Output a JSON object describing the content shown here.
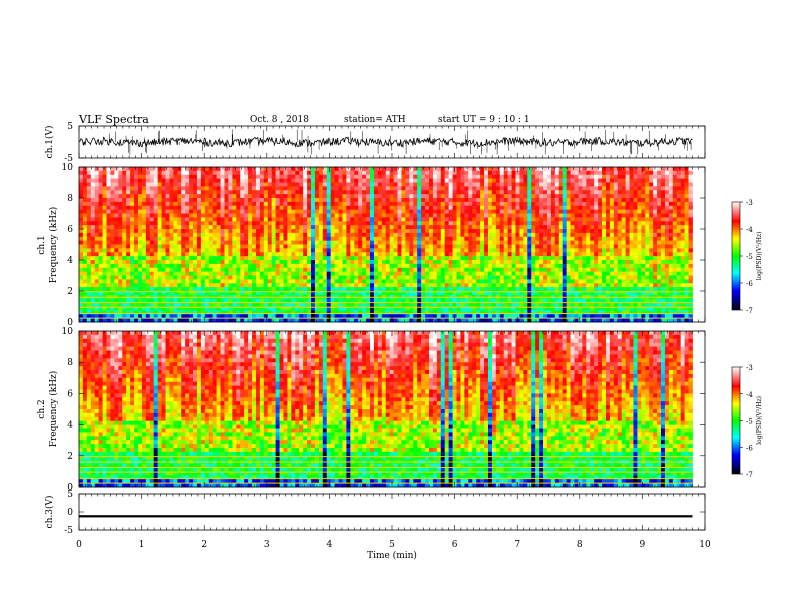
{
  "header": {
    "title": "VLF Spectra",
    "date": "Oct. 8 , 2018",
    "station": "station= ATH",
    "start_ut": "start UT = 9 : 10 : 1"
  },
  "chart_data": [
    {
      "type": "line",
      "panel": "ch1-waveform",
      "ylabel": "ch.1(V)",
      "yticks": [
        -5,
        5
      ],
      "ylim": [
        -5,
        5
      ],
      "xlim": [
        0,
        10
      ],
      "series": [
        {
          "values_note": "",
          "mean": 0.0,
          "envelope": [
            -1.5,
            1.5
          ],
          "spike_range": [
            -4,
            4
          ],
          "x_end": 9.8
        }
      ]
    },
    {
      "type": "heatmap",
      "panel": "ch1-spectrogram",
      "ylabel": "ch.1 Frequency (kHz)",
      "yticks": [
        0,
        2,
        4,
        6,
        8,
        10
      ],
      "ylim": [
        0,
        10
      ],
      "xlim": [
        0,
        10
      ],
      "x_end": 9.8,
      "colorbar": {
        "label": "log(PSD)(V²/Hz)",
        "ticks": [
          -3,
          -4,
          -5,
          -6,
          -7
        ],
        "range": [
          -7,
          -3
        ]
      }
    },
    {
      "type": "heatmap",
      "panel": "ch2-spectrogram",
      "ylabel": "ch.2 Frequency (kHz)",
      "yticks": [
        0,
        2,
        4,
        6,
        8,
        10
      ],
      "ylim": [
        0,
        10
      ],
      "xlim": [
        0,
        10
      ],
      "x_end": 9.8,
      "colorbar": {
        "label": "log(PSD)(V²/Hz)",
        "ticks": [
          -3,
          -4,
          -5,
          -6,
          -7
        ],
        "range": [
          -7,
          -3
        ]
      }
    },
    {
      "type": "line",
      "panel": "ch3-waveform",
      "ylabel": "ch.3(V)",
      "yticks": [
        5,
        0,
        -5
      ],
      "ylim": [
        -5,
        5
      ],
      "xlim": [
        0,
        10
      ],
      "series": [
        {
          "mean": -1.2,
          "envelope": [
            -1.5,
            -0.9
          ],
          "x_end": 9.8
        }
      ]
    }
  ],
  "xaxis": {
    "label": "Time (min)",
    "ticks": [
      0,
      1,
      2,
      3,
      4,
      5,
      6,
      7,
      8,
      9,
      10
    ]
  }
}
